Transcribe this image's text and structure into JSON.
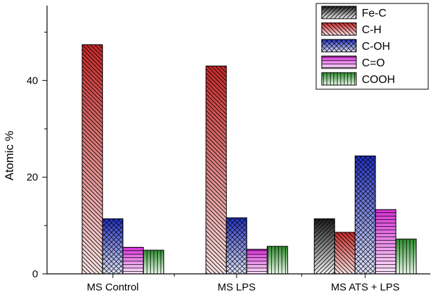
{
  "chart_data": {
    "type": "bar",
    "categories": [
      "MS Control",
      "MS LPS",
      "MS ATS + LPS"
    ],
    "series": [
      {
        "name": "Fe-C",
        "values": [
          0,
          0,
          11.4
        ],
        "color": "#222222"
      },
      {
        "name": "C-H",
        "values": [
          47.4,
          43.0,
          8.6
        ],
        "color": "#d63a3a"
      },
      {
        "name": "C-OH",
        "values": [
          11.4,
          11.6,
          24.4
        ],
        "color": "#2f3fcf"
      },
      {
        "name": "C=O",
        "values": [
          5.5,
          5.1,
          13.3
        ],
        "color": "#e23fe2"
      },
      {
        "name": "COOH",
        "values": [
          4.9,
          5.7,
          7.2
        ],
        "color": "#3f9c3f"
      }
    ],
    "ylabel": "Atomic %",
    "xlabel": "",
    "ylim": [
      0,
      55.5
    ],
    "yticks": [
      0,
      20,
      40
    ],
    "legend_position": "top-right",
    "grid": false
  }
}
